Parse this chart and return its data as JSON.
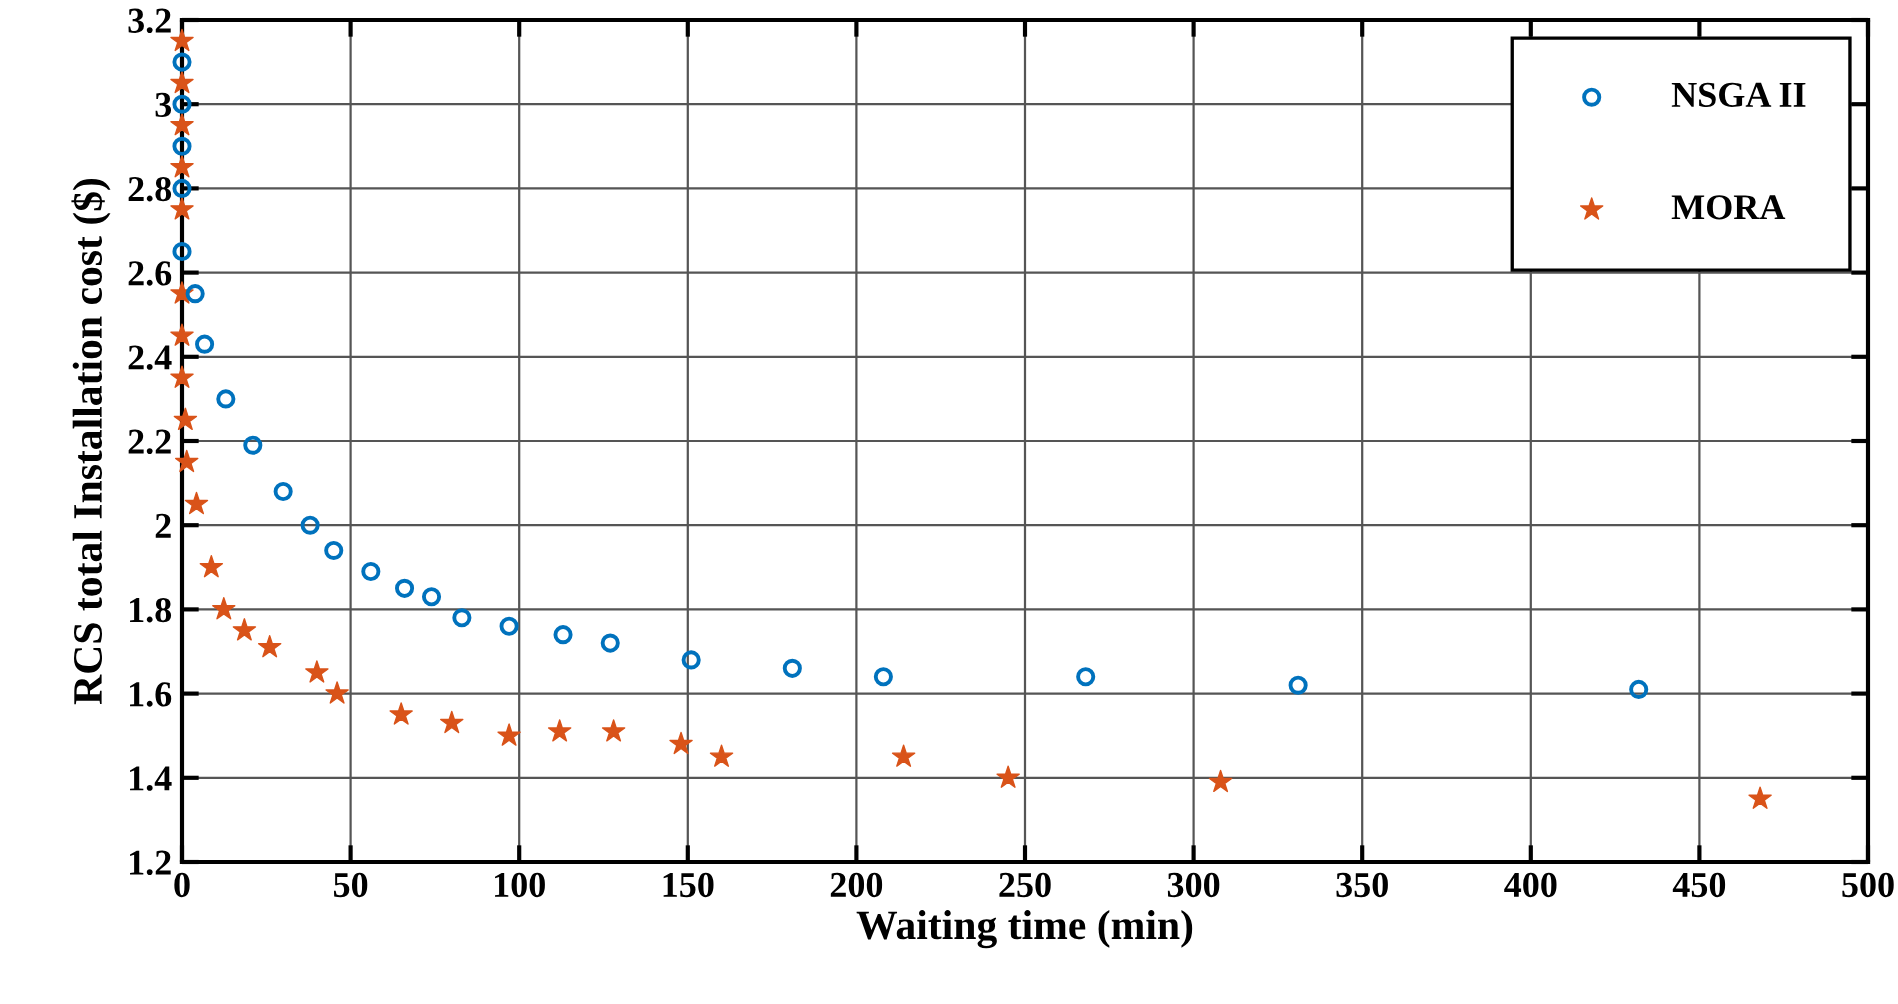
{
  "chart_data": {
    "type": "scatter",
    "xlabel": "Waiting time (min)",
    "ylabel": "RCS total Installation cost ($)",
    "xlim": [
      0,
      500
    ],
    "xticks": [
      0,
      50,
      100,
      150,
      200,
      250,
      300,
      350,
      400,
      450,
      500
    ],
    "ylim": [
      1.2,
      3.2
    ],
    "yticks": [
      1.2,
      1.4,
      1.6,
      1.8,
      2,
      2.2,
      2.4,
      2.6,
      2.8,
      3,
      3.2
    ],
    "grid": true,
    "legend": "top right",
    "series": [
      {
        "name": "NSGA II",
        "color": "#0072bd",
        "marker": "circle",
        "x": [
          0,
          0,
          0,
          0,
          0,
          3.9,
          6.7,
          13,
          21,
          30,
          38,
          45,
          56,
          66,
          74,
          83,
          97,
          113,
          127,
          151,
          181,
          208,
          268,
          331,
          432
        ],
        "values": [
          3.1,
          3.0,
          2.9,
          2.8,
          2.65,
          2.55,
          2.43,
          2.3,
          2.19,
          2.08,
          2.0,
          1.94,
          1.89,
          1.85,
          1.83,
          1.78,
          1.76,
          1.74,
          1.72,
          1.68,
          1.66,
          1.64,
          1.64,
          1.62,
          1.61
        ]
      },
      {
        "name": "MORA",
        "color": "#d95319",
        "marker": "star",
        "x": [
          0,
          0,
          0,
          0,
          0,
          0,
          0,
          0,
          1,
          1.4,
          4.3,
          8.7,
          12.4,
          18.5,
          26,
          40,
          46,
          65,
          80,
          97,
          112,
          128,
          148,
          160,
          214,
          245,
          308,
          468
        ],
        "values": [
          3.15,
          3.05,
          2.95,
          2.85,
          2.75,
          2.55,
          2.45,
          2.35,
          2.25,
          2.15,
          2.05,
          1.9,
          1.8,
          1.75,
          1.71,
          1.65,
          1.6,
          1.55,
          1.53,
          1.5,
          1.51,
          1.51,
          1.48,
          1.45,
          1.45,
          1.4,
          1.39,
          1.35
        ]
      }
    ]
  }
}
